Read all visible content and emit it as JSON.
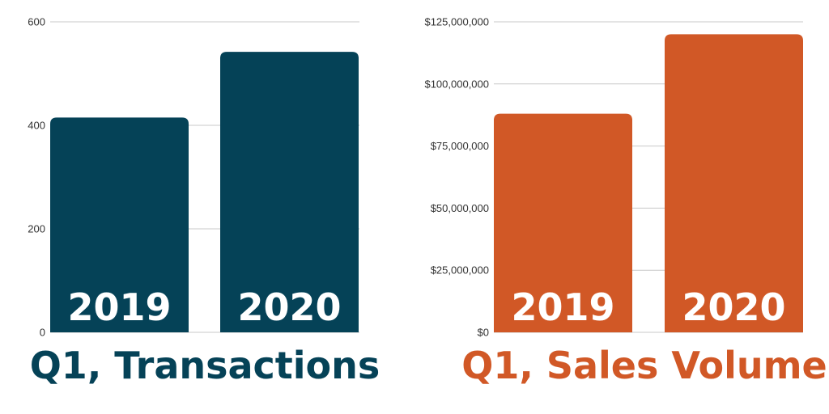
{
  "chart_data": [
    {
      "type": "bar",
      "title": "Q1, Transactions",
      "categories": [
        "2019",
        "2020"
      ],
      "values": [
        415,
        542
      ],
      "ylim": [
        0,
        600
      ],
      "yticks": [
        0,
        200,
        400,
        600
      ],
      "ytick_labels": [
        "0",
        "200",
        "400",
        "600"
      ],
      "xlabel": "",
      "ylabel": "",
      "grid": true,
      "color": "#054257"
    },
    {
      "type": "bar",
      "title": "Q1, Sales Volume",
      "categories": [
        "2019",
        "2020"
      ],
      "values": [
        88000000,
        120000000
      ],
      "ylim": [
        0,
        125000000
      ],
      "yticks": [
        0,
        25000000,
        50000000,
        75000000,
        100000000,
        125000000
      ],
      "ytick_labels": [
        "$0",
        "$25,000,000",
        "$50,000,000",
        "$75,000,000",
        "$100,000,000",
        "$125,000,000"
      ],
      "xlabel": "",
      "ylabel": "",
      "grid": true,
      "color": "#d15826"
    }
  ]
}
